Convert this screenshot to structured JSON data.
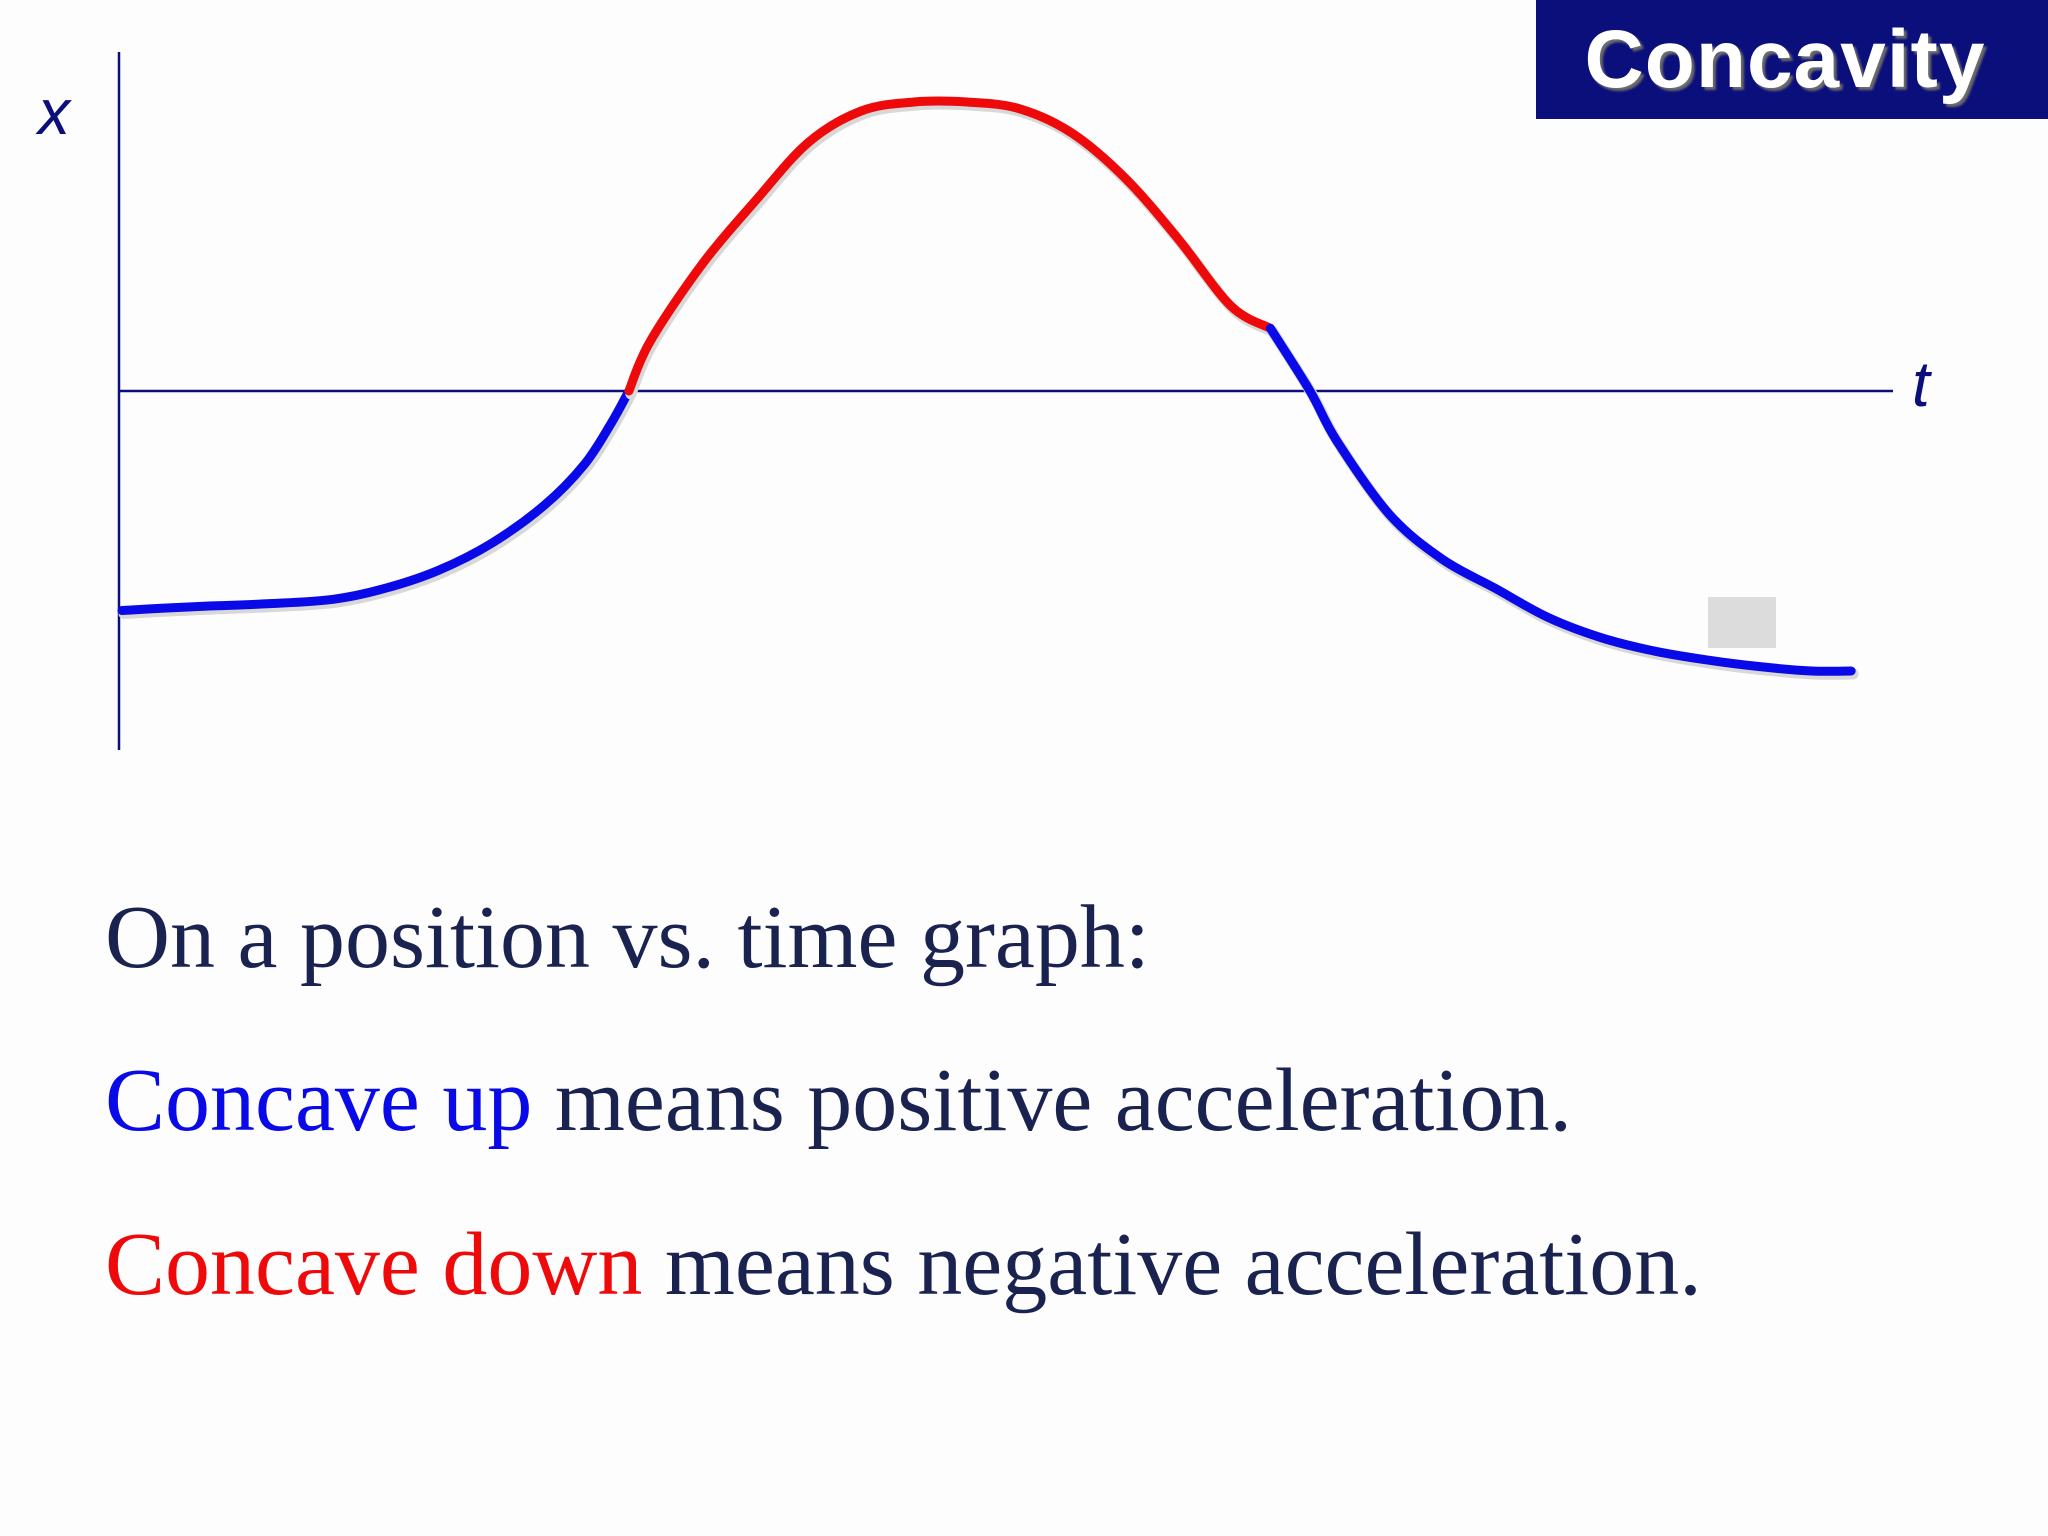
{
  "title": "Concavity",
  "axes": {
    "y_label": "x",
    "x_label": "t"
  },
  "colors": {
    "banner": "#0b0f7c",
    "axis": "#0b0f7c",
    "concave_up": "#0a0ae8",
    "concave_down": "#ee0a0a",
    "text": "#1a2350"
  },
  "chart_data": {
    "type": "line",
    "grid": false,
    "segments": [
      {
        "concavity": "up",
        "color": "#0a0ae8",
        "points": [
          [
            0.0,
            -0.98
          ],
          [
            0.15,
            -0.97
          ],
          [
            0.33,
            -0.96
          ],
          [
            0.55,
            -0.95
          ],
          [
            0.8,
            -0.93
          ],
          [
            1.0,
            -0.88
          ],
          [
            1.2,
            -0.8
          ],
          [
            1.4,
            -0.68
          ],
          [
            1.6,
            -0.51
          ],
          [
            1.75,
            -0.33
          ],
          [
            1.85,
            -0.15
          ],
          [
            1.92,
            0.0
          ]
        ]
      },
      {
        "concavity": "down",
        "color": "#ee0a0a",
        "points": [
          [
            1.92,
            0.0
          ],
          [
            2.0,
            0.22
          ],
          [
            2.2,
            0.57
          ],
          [
            2.4,
            0.85
          ],
          [
            2.6,
            1.11
          ],
          [
            2.8,
            1.25
          ],
          [
            3.0,
            1.29
          ],
          [
            3.2,
            1.29
          ],
          [
            3.4,
            1.26
          ],
          [
            3.6,
            1.15
          ],
          [
            3.8,
            0.95
          ],
          [
            4.0,
            0.68
          ],
          [
            4.2,
            0.38
          ],
          [
            4.35,
            0.28
          ]
        ]
      },
      {
        "concavity": "up",
        "color": "#0a0ae8",
        "points": [
          [
            4.35,
            0.28
          ],
          [
            4.5,
            0.0
          ],
          [
            4.6,
            -0.22
          ],
          [
            4.8,
            -0.55
          ],
          [
            5.0,
            -0.75
          ],
          [
            5.2,
            -0.88
          ],
          [
            5.4,
            -1.01
          ],
          [
            5.6,
            -1.1
          ],
          [
            5.8,
            -1.16
          ],
          [
            6.0,
            -1.2
          ],
          [
            6.2,
            -1.23
          ],
          [
            6.4,
            -1.25
          ],
          [
            6.55,
            -1.25
          ]
        ]
      }
    ]
  },
  "caption": {
    "line1": "On a position vs. time graph:",
    "line2_highlight": "Concave up",
    "line2_rest": " means positive acceleration.",
    "line3_highlight": "Concave down",
    "line3_rest": " means negative acceleration."
  }
}
